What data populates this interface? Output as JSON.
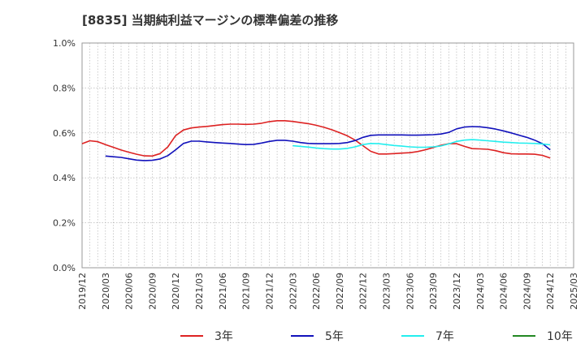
{
  "chart_data": {
    "type": "line",
    "title": "[8835]  当期純利益マージンの標準偏差の推移",
    "xlabel": "",
    "ylabel": "",
    "ylim": [
      0,
      1.0
    ],
    "yticks": [
      "0.0%",
      "0.2%",
      "0.4%",
      "0.6%",
      "0.8%",
      "1.0%"
    ],
    "ytick_values": [
      0,
      0.2,
      0.4,
      0.6,
      0.8,
      1.0
    ],
    "xticks": [
      "2019/12",
      "2020/03",
      "2020/06",
      "2020/09",
      "2020/12",
      "2021/03",
      "2021/06",
      "2021/09",
      "2021/12",
      "2022/03",
      "2022/06",
      "2022/09",
      "2022/12",
      "2023/03",
      "2023/06",
      "2023/09",
      "2023/12",
      "2024/03",
      "2024/06",
      "2024/09",
      "2024/12",
      "2025/03"
    ],
    "grid": true,
    "legend_position": "bottom",
    "series": [
      {
        "name": "3年",
        "color": "#dd2222",
        "x": [
          "2019/12",
          "2020/01",
          "2020/02",
          "2020/03",
          "2020/04",
          "2020/05",
          "2020/06",
          "2020/07",
          "2020/08",
          "2020/09",
          "2020/10",
          "2020/11",
          "2020/12",
          "2021/01",
          "2021/02",
          "2021/03",
          "2021/04",
          "2021/05",
          "2021/06",
          "2021/07",
          "2021/08",
          "2021/09",
          "2021/10",
          "2021/11",
          "2021/12",
          "2022/01",
          "2022/02",
          "2022/03",
          "2022/04",
          "2022/05",
          "2022/06",
          "2022/07",
          "2022/08",
          "2022/09",
          "2022/10",
          "2022/11",
          "2022/12",
          "2023/01",
          "2023/02",
          "2023/03",
          "2023/04",
          "2023/05",
          "2023/06",
          "2023/07",
          "2023/08",
          "2023/09",
          "2023/10",
          "2023/11",
          "2023/12",
          "2024/01",
          "2024/02",
          "2024/03",
          "2024/04",
          "2024/05",
          "2024/06",
          "2024/07",
          "2024/08",
          "2024/09",
          "2024/10",
          "2024/11",
          "2024/12"
        ],
        "values": [
          0.552,
          0.565,
          0.561,
          0.548,
          0.536,
          0.524,
          0.514,
          0.505,
          0.498,
          0.497,
          0.508,
          0.538,
          0.588,
          0.613,
          0.622,
          0.626,
          0.629,
          0.633,
          0.637,
          0.639,
          0.639,
          0.638,
          0.639,
          0.643,
          0.65,
          0.654,
          0.654,
          0.651,
          0.646,
          0.641,
          0.634,
          0.625,
          0.614,
          0.601,
          0.587,
          0.568,
          0.543,
          0.518,
          0.506,
          0.506,
          0.508,
          0.51,
          0.512,
          0.517,
          0.525,
          0.535,
          0.545,
          0.552,
          0.552,
          0.54,
          0.53,
          0.529,
          0.527,
          0.521,
          0.512,
          0.507,
          0.506,
          0.506,
          0.505,
          0.5,
          0.488
        ]
      },
      {
        "name": "5年",
        "color": "#1111bb",
        "x": [
          "2020/03",
          "2020/04",
          "2020/05",
          "2020/06",
          "2020/07",
          "2020/08",
          "2020/09",
          "2020/10",
          "2020/11",
          "2020/12",
          "2021/01",
          "2021/02",
          "2021/03",
          "2021/04",
          "2021/05",
          "2021/06",
          "2021/07",
          "2021/08",
          "2021/09",
          "2021/10",
          "2021/11",
          "2021/12",
          "2022/01",
          "2022/02",
          "2022/03",
          "2022/04",
          "2022/05",
          "2022/06",
          "2022/07",
          "2022/08",
          "2022/09",
          "2022/10",
          "2022/11",
          "2022/12",
          "2023/01",
          "2023/02",
          "2023/03",
          "2023/04",
          "2023/05",
          "2023/06",
          "2023/07",
          "2023/08",
          "2023/09",
          "2023/10",
          "2023/11",
          "2023/12",
          "2024/01",
          "2024/02",
          "2024/03",
          "2024/04",
          "2024/05",
          "2024/06",
          "2024/07",
          "2024/08",
          "2024/09",
          "2024/10",
          "2024/11",
          "2024/12"
        ],
        "values": [
          0.497,
          0.494,
          0.491,
          0.485,
          0.479,
          0.477,
          0.478,
          0.484,
          0.499,
          0.525,
          0.553,
          0.563,
          0.563,
          0.56,
          0.557,
          0.555,
          0.553,
          0.55,
          0.548,
          0.549,
          0.555,
          0.562,
          0.567,
          0.567,
          0.563,
          0.557,
          0.553,
          0.552,
          0.552,
          0.552,
          0.553,
          0.557,
          0.566,
          0.58,
          0.589,
          0.591,
          0.591,
          0.591,
          0.591,
          0.59,
          0.59,
          0.591,
          0.592,
          0.595,
          0.602,
          0.618,
          0.626,
          0.628,
          0.627,
          0.623,
          0.617,
          0.609,
          0.6,
          0.59,
          0.58,
          0.568,
          0.552,
          0.525
        ]
      },
      {
        "name": "7年",
        "color": "#22eeee",
        "x": [
          "2022/03",
          "2022/04",
          "2022/05",
          "2022/06",
          "2022/07",
          "2022/08",
          "2022/09",
          "2022/10",
          "2022/11",
          "2022/12",
          "2023/01",
          "2023/02",
          "2023/03",
          "2023/04",
          "2023/05",
          "2023/06",
          "2023/07",
          "2023/08",
          "2023/09",
          "2023/10",
          "2023/11",
          "2023/12",
          "2024/01",
          "2024/02",
          "2024/03",
          "2024/04",
          "2024/05",
          "2024/06",
          "2024/07",
          "2024/08",
          "2024/09",
          "2024/10",
          "2024/11",
          "2024/12"
        ],
        "values": [
          0.543,
          0.54,
          0.537,
          0.533,
          0.53,
          0.528,
          0.528,
          0.531,
          0.538,
          0.548,
          0.553,
          0.552,
          0.548,
          0.544,
          0.541,
          0.538,
          0.536,
          0.536,
          0.538,
          0.542,
          0.551,
          0.562,
          0.568,
          0.57,
          0.568,
          0.565,
          0.562,
          0.559,
          0.557,
          0.555,
          0.554,
          0.553,
          0.551,
          0.547
        ]
      },
      {
        "name": "10年",
        "color": "#228822",
        "x": [],
        "values": []
      }
    ]
  }
}
